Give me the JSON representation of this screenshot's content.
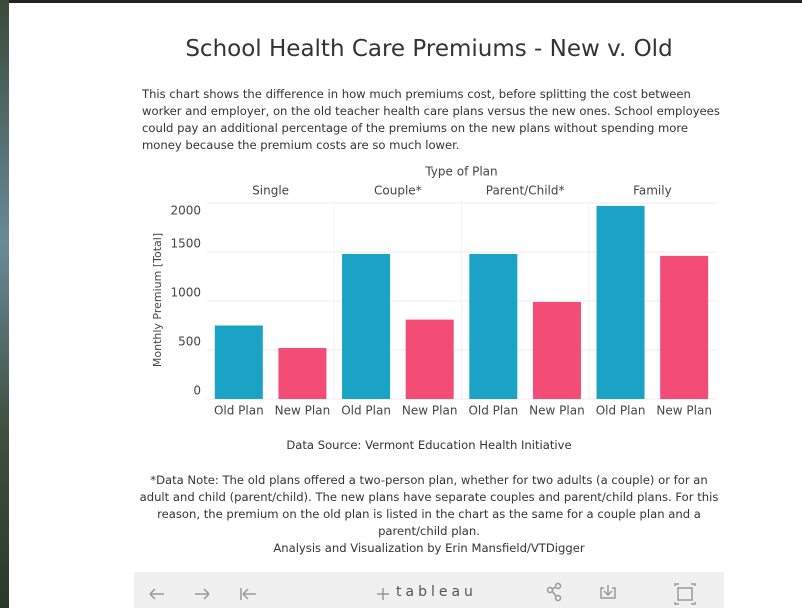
{
  "chart_data": {
    "type": "bar",
    "title": "School Health Care Premiums - New v. Old",
    "description": "This chart shows the difference in how much premiums cost, before splitting the cost between worker and employer, on the old teacher health care plans versus the new ones. School employees could pay an additional percentage of the premiums on the new plans without spending more money because the premium costs are so much lower.",
    "group_axis_title": "Type of Plan",
    "y_axis_title": "Monthly Premium [Total]",
    "categories": [
      "Single",
      "Couple*",
      "Parent/Child*",
      "Family"
    ],
    "series": [
      {
        "name": "Old Plan",
        "color": "#1ba3c6",
        "values": [
          750,
          1480,
          1480,
          1970
        ]
      },
      {
        "name": "New Plan",
        "color": "#f24c77",
        "values": [
          520,
          810,
          990,
          1460
        ]
      }
    ],
    "ylim": [
      0,
      2020
    ],
    "yticks": [
      0,
      500,
      1000,
      1500,
      2000
    ],
    "grid": true,
    "source": "Data Source: Vermont Education Health Initiative",
    "note": "*Data Note: The old plans offered a two-person plan, whether for two adults (a couple) or for an adult and child (parent/child). The new plans have separate couples and parent/child plans. For this reason, the premium on the old plan is listed in the chart as the same for a couple plan and a parent/child plan.",
    "credit": "Analysis and Visualization by Erin Mansfield/VTDigger"
  },
  "toolbar": {
    "brand": "tableau"
  }
}
